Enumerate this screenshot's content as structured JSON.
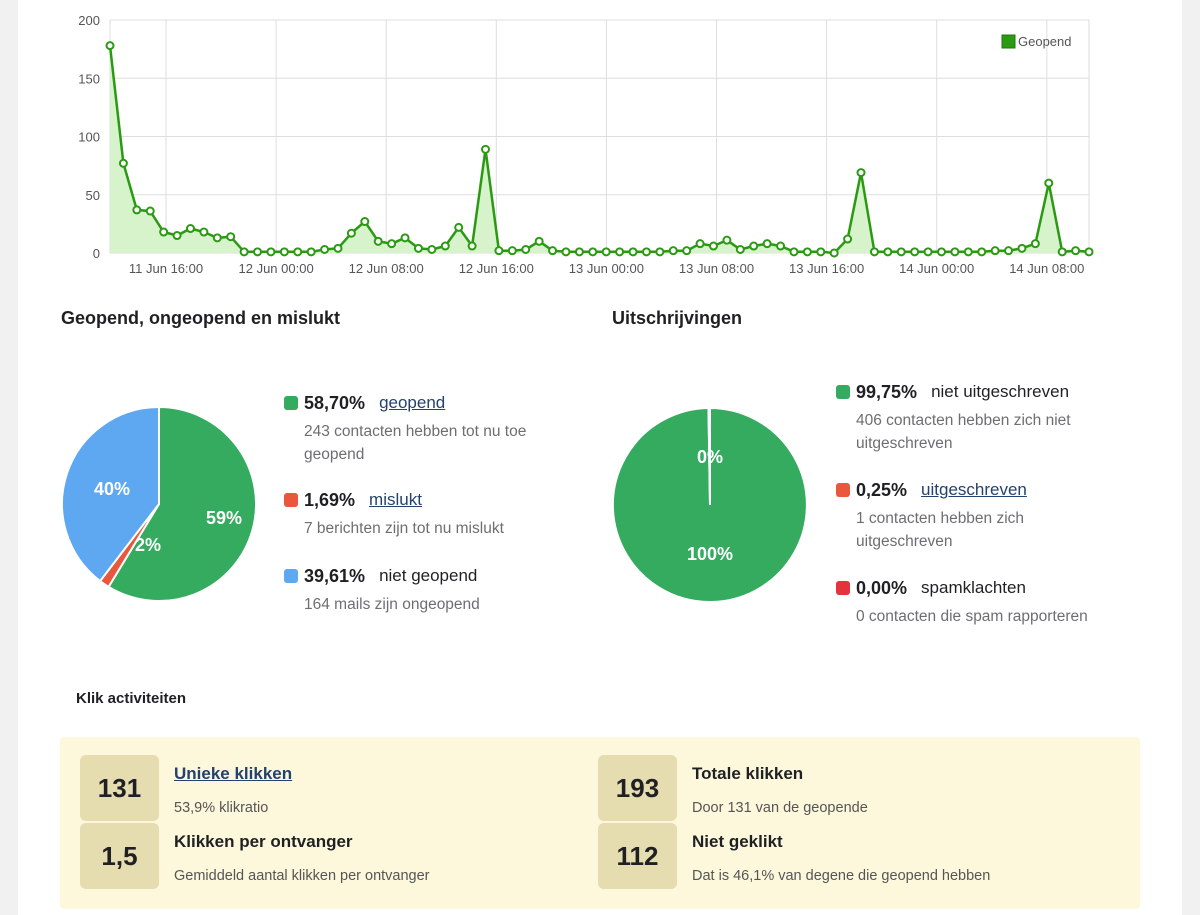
{
  "chart_data": {
    "type": "area",
    "x_labels": [
      "11 Jun 16:00",
      "12 Jun 00:00",
      "12 Jun 08:00",
      "12 Jun 16:00",
      "13 Jun 00:00",
      "13 Jun 08:00",
      "13 Jun 16:00",
      "14 Jun 00:00",
      "14 Jun 08:00"
    ],
    "ylim": [
      0,
      200
    ],
    "yticks": [
      0,
      50,
      100,
      150,
      200
    ],
    "grid": true,
    "legend_position": "top-right",
    "color": "#2a9a12",
    "fill_color": "#d6f3cc",
    "series": [
      {
        "name": "Geopend",
        "values": [
          178,
          77,
          37,
          36,
          18,
          15,
          21,
          18,
          13,
          14,
          1,
          1,
          1,
          1,
          1,
          1,
          3,
          4,
          17,
          27,
          10,
          8,
          13,
          4,
          3,
          6,
          22,
          6,
          89,
          2,
          2,
          3,
          10,
          2,
          1,
          1,
          1,
          1,
          1,
          1,
          1,
          1,
          2,
          2,
          8,
          6,
          11,
          3,
          6,
          8,
          6,
          1,
          1,
          1,
          0,
          12,
          69,
          1,
          1,
          1,
          1,
          1,
          1,
          1,
          1,
          1,
          2,
          2,
          4,
          8,
          60,
          1,
          2,
          1
        ]
      }
    ]
  },
  "opened_section": {
    "title": "Geopend, ongeopend en mislukt",
    "pie_labels": [
      "59%",
      "2%",
      "40%"
    ],
    "pie_values": [
      58.7,
      1.69,
      39.61
    ],
    "colors": [
      "#34ab5f",
      "#e9573d",
      "#5ea8f2"
    ],
    "items": [
      {
        "pct": "58,70%",
        "label": "geopend",
        "desc": "243 contacten hebben tot nu toe geopend"
      },
      {
        "pct": "1,69%",
        "label": "mislukt",
        "desc": "7 berichten zijn tot nu mislukt"
      },
      {
        "pct": "39,61%",
        "label": "niet geopend",
        "desc": "164 mails zijn ongeopend"
      }
    ]
  },
  "unsub_section": {
    "title": "Uitschrijvingen",
    "pie_labels": [
      "100%",
      "0%"
    ],
    "pie_values": [
      99.75,
      0.25
    ],
    "colors": [
      "#34ab5f",
      "#e9573d",
      "#e5333e"
    ],
    "items": [
      {
        "pct": "99,75%",
        "label": "niet uitgeschreven",
        "desc": "406 contacten hebben zich niet uitgeschreven"
      },
      {
        "pct": "0,25%",
        "label": "uitgeschreven",
        "desc": "1 contacten hebben zich uitgeschreven"
      },
      {
        "pct": "0,00%",
        "label": "spamklachten",
        "desc": "0 contacten die spam rapporteren"
      }
    ]
  },
  "clicks": {
    "title": "Klik activiteiten",
    "stats": [
      {
        "value": "131",
        "title": "Unieke klikken",
        "desc": "53,9% klikratio"
      },
      {
        "value": "193",
        "title": "Totale klikken",
        "desc": "Door 131 van de geopende"
      },
      {
        "value": "1,5",
        "title": "Klikken per ontvanger",
        "desc": "Gemiddeld aantal klikken per ontvanger"
      },
      {
        "value": "112",
        "title": "Niet geklikt",
        "desc": "Dat is 46,1% van degene die geopend hebben"
      }
    ]
  }
}
